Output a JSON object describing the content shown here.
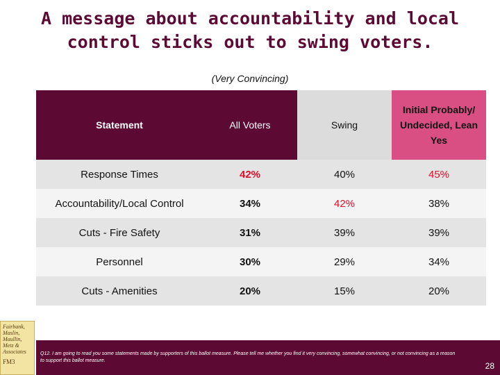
{
  "header": {
    "title": "A message about accountability and local control sticks out to swing voters.",
    "subtitle": "(Very Convincing)"
  },
  "table": {
    "columns": [
      "Statement",
      "All Voters",
      "Swing",
      "Initial Probably/ Undecided, Lean Yes"
    ],
    "rows": [
      [
        "Response Times",
        "42%",
        "40%",
        "45%"
      ],
      [
        "Accountability/Local Control",
        "34%",
        "42%",
        "38%"
      ],
      [
        "Cuts - Fire Safety",
        "31%",
        "39%",
        "39%"
      ],
      [
        "Personnel",
        "30%",
        "29%",
        "34%"
      ],
      [
        "Cuts - Amenities",
        "20%",
        "15%",
        "20%"
      ]
    ]
  },
  "footer": {
    "note": "Q12. I am going to read you some statements made by supporters of this ballot measure. Please tell me whether you find it very convincing, somewhat convincing, or not convincing as a reason to support this ballot measure.",
    "page": "28",
    "logo_text": "Fairbank, Maslin, Maullin, Metz & Associates",
    "logo_mark": "FM3"
  }
}
